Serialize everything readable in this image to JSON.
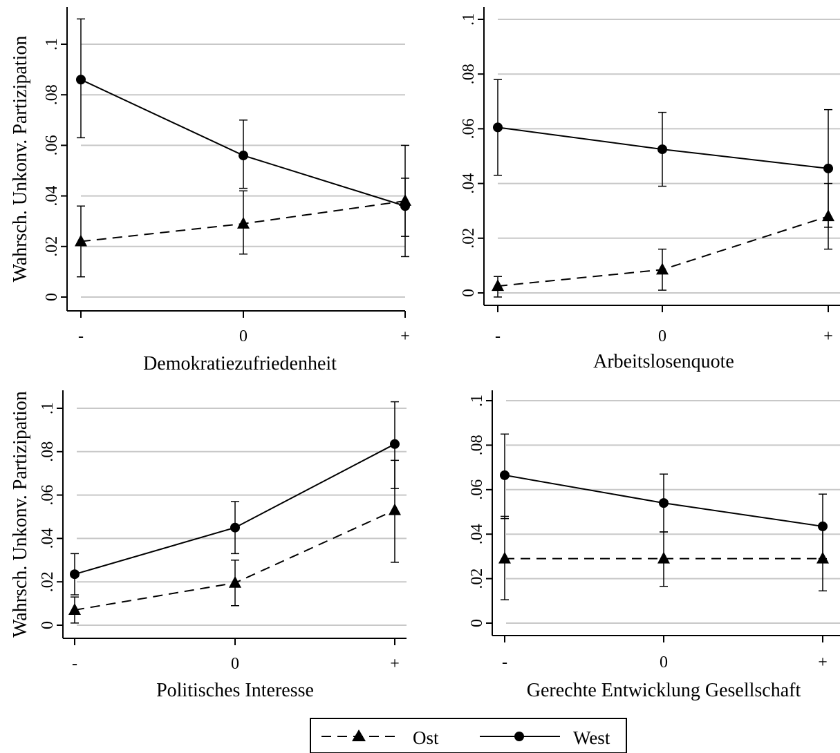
{
  "y_axis_label": "Wahrsch. Unkonv. Partizipation",
  "legend": {
    "items": [
      {
        "name": "Ost",
        "line": "dashed",
        "marker": "triangle"
      },
      {
        "name": "West",
        "line": "solid",
        "marker": "circle"
      }
    ]
  },
  "colors": {
    "ink": "#000000",
    "grid": "#c8c8c8",
    "background": "#ffffff"
  },
  "chart_data": [
    {
      "type": "line",
      "title": "",
      "xlabel": "Demokratiezufriedenheit",
      "ylabel": "Wahrsch. Unkonv. Partizipation",
      "categories": [
        "-",
        "0",
        "+"
      ],
      "ylim": [
        0,
        0.1
      ],
      "yticks": [
        0,
        0.02,
        0.04,
        0.06,
        0.08,
        0.1
      ],
      "ytick_labels": [
        "0",
        ".02",
        ".04",
        ".06",
        ".08",
        ".1"
      ],
      "grid": true,
      "series": [
        {
          "name": "Ost",
          "values": [
            0.022,
            0.029,
            0.038
          ],
          "ci_low": [
            0.008,
            0.017,
            0.016
          ],
          "ci_high": [
            0.036,
            0.042,
            0.06
          ]
        },
        {
          "name": "West",
          "values": [
            0.086,
            0.056,
            0.036
          ],
          "ci_low": [
            0.063,
            0.043,
            0.024
          ],
          "ci_high": [
            0.11,
            0.07,
            0.047
          ]
        }
      ]
    },
    {
      "type": "line",
      "title": "",
      "xlabel": "Arbeitslosenquote",
      "ylabel": "",
      "categories": [
        "-",
        "0",
        "+"
      ],
      "ylim": [
        0,
        0.1
      ],
      "yticks": [
        0,
        0.02,
        0.04,
        0.06,
        0.08,
        0.1
      ],
      "ytick_labels": [
        "0",
        ".02",
        ".04",
        ".06",
        ".08",
        ".1"
      ],
      "grid": true,
      "series": [
        {
          "name": "Ost",
          "values": [
            0.0025,
            0.0085,
            0.028
          ],
          "ci_low": [
            -0.0015,
            0.001,
            0.016
          ],
          "ci_high": [
            0.006,
            0.016,
            0.04
          ]
        },
        {
          "name": "West",
          "values": [
            0.0605,
            0.0525,
            0.0455
          ],
          "ci_low": [
            0.043,
            0.039,
            0.024
          ],
          "ci_high": [
            0.078,
            0.066,
            0.067
          ]
        }
      ]
    },
    {
      "type": "line",
      "title": "",
      "xlabel": "Politisches Interesse",
      "ylabel": "Wahrsch. Unkonv. Partizipation",
      "categories": [
        "-",
        "0",
        "+"
      ],
      "ylim": [
        0,
        0.1
      ],
      "yticks": [
        0,
        0.02,
        0.04,
        0.06,
        0.08,
        0.1
      ],
      "ytick_labels": [
        "0",
        ".02",
        ".04",
        ".06",
        ".08",
        ".1"
      ],
      "grid": true,
      "series": [
        {
          "name": "Ost",
          "values": [
            0.007,
            0.0195,
            0.053
          ],
          "ci_low": [
            0.001,
            0.009,
            0.029
          ],
          "ci_high": [
            0.013,
            0.03,
            0.076
          ]
        },
        {
          "name": "West",
          "values": [
            0.0235,
            0.045,
            0.0835
          ],
          "ci_low": [
            0.014,
            0.033,
            0.063
          ],
          "ci_high": [
            0.033,
            0.057,
            0.103
          ]
        }
      ]
    },
    {
      "type": "line",
      "title": "",
      "xlabel": "Gerechte Entwicklung Gesellschaft",
      "ylabel": "",
      "categories": [
        "-",
        "0",
        "+"
      ],
      "ylim": [
        0,
        0.1
      ],
      "yticks": [
        0,
        0.02,
        0.04,
        0.06,
        0.08,
        0.1
      ],
      "ytick_labels": [
        "0",
        ".02",
        ".04",
        ".06",
        ".08",
        ".1"
      ],
      "grid": true,
      "series": [
        {
          "name": "Ost",
          "values": [
            0.029,
            0.029,
            0.029
          ],
          "ci_low": [
            0.0105,
            0.0165,
            0.0145
          ],
          "ci_high": [
            0.048,
            0.041,
            0.043
          ]
        },
        {
          "name": "West",
          "values": [
            0.0665,
            0.054,
            0.0435
          ],
          "ci_low": [
            0.047,
            0.041,
            0.029
          ],
          "ci_high": [
            0.085,
            0.067,
            0.058
          ]
        }
      ]
    }
  ]
}
